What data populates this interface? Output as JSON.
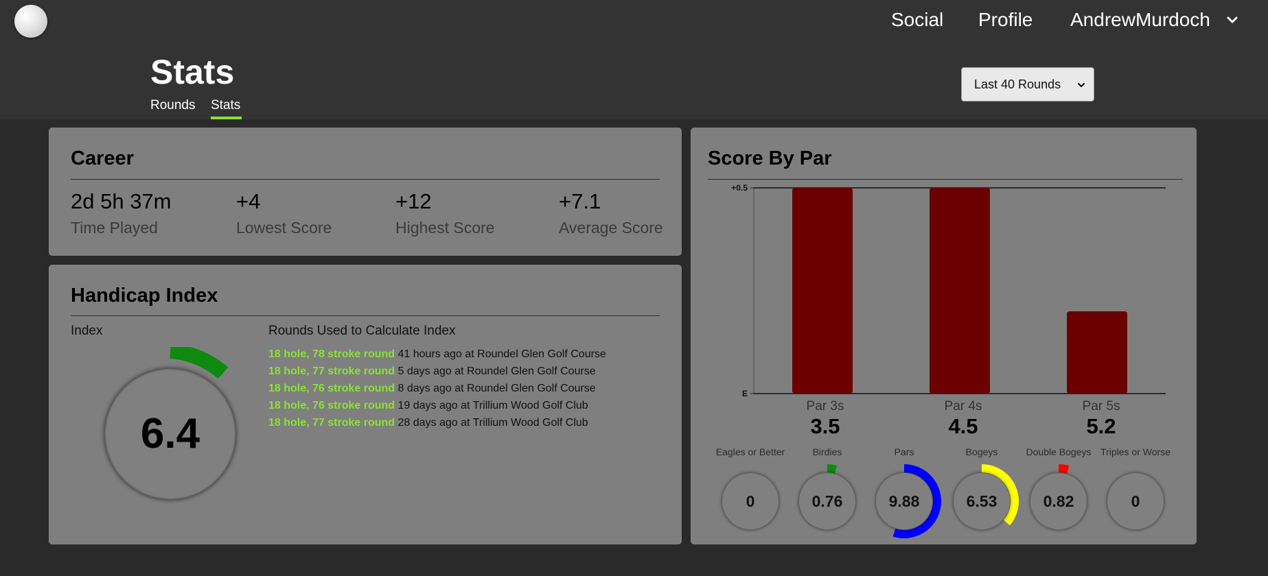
{
  "nav": {
    "social": "Social",
    "profile": "Profile",
    "username": "AndrewMurdoch"
  },
  "page": {
    "title": "Stats",
    "tabs": [
      {
        "label": "Rounds",
        "active": false
      },
      {
        "label": "Stats",
        "active": true
      }
    ],
    "range_selected": "Last 40 Rounds"
  },
  "colors": {
    "accent_green": "#8ae234",
    "bar_color": "#6b0000",
    "eagle": "#1a1a1a",
    "birdie": "#0e8a0e",
    "par": "#0000ff",
    "bogey": "#ffff00",
    "double_bogey": "#ff0000",
    "handicap_arc": "#0e8a0e"
  },
  "career": {
    "title": "Career",
    "stats": [
      {
        "value": "2d 5h 37m",
        "label": "Time Played"
      },
      {
        "value": "+4",
        "label": "Lowest Score"
      },
      {
        "value": "+12",
        "label": "Highest Score"
      },
      {
        "value": "+7.1",
        "label": "Average Score"
      }
    ]
  },
  "handicap": {
    "title": "Handicap Index",
    "index_label": "Index",
    "index_value": "6.4",
    "rounds_title": "Rounds Used to Calculate Index",
    "rounds": [
      {
        "strokes": "18 hole, 78 stroke round",
        "detail": "41 hours ago at Roundel Glen Golf Course"
      },
      {
        "strokes": "18 hole, 77 stroke round",
        "detail": "5 days ago at Roundel Glen Golf Course"
      },
      {
        "strokes": "18 hole, 76 stroke round",
        "detail": "8 days ago at Roundel Glen Golf Course"
      },
      {
        "strokes": "18 hole, 76 stroke round",
        "detail": "19 days ago at Trillium Wood Golf Club"
      },
      {
        "strokes": "18 hole, 77 stroke round",
        "detail": "28 days ago at Trillium Wood Golf Club"
      }
    ]
  },
  "score_by_par": {
    "title": "Score By Par",
    "pars": [
      {
        "label": "Par 3s",
        "value": "3.5"
      },
      {
        "label": "Par 4s",
        "value": "4.5"
      },
      {
        "label": "Par 5s",
        "value": "5.2"
      }
    ],
    "distribution": [
      {
        "label": "Eagles or Better",
        "value": "0",
        "color": "#1a1a1a",
        "fraction": 0
      },
      {
        "label": "Birdies",
        "value": "0.76",
        "color": "#0e8a0e",
        "fraction": 0.042
      },
      {
        "label": "Pars",
        "value": "9.88",
        "color": "#0000ff",
        "fraction": 0.549
      },
      {
        "label": "Bogeys",
        "value": "6.53",
        "color": "#ffff00",
        "fraction": 0.363
      },
      {
        "label": "Double Bogeys",
        "value": "0.82",
        "color": "#ff0000",
        "fraction": 0.046
      },
      {
        "label": "Triples or Worse",
        "value": "0",
        "color": "#1a1a1a",
        "fraction": 0
      }
    ]
  },
  "chart_data": {
    "type": "bar",
    "categories": [
      "Par 3s",
      "Par 4s",
      "Par 5s"
    ],
    "values": [
      0.5,
      0.5,
      0.2
    ],
    "ytick_labels": [
      "E",
      "+0.5"
    ],
    "ylim": [
      0,
      0.5
    ],
    "grid": false,
    "legend": "none",
    "bar_color": "#6b0000"
  }
}
